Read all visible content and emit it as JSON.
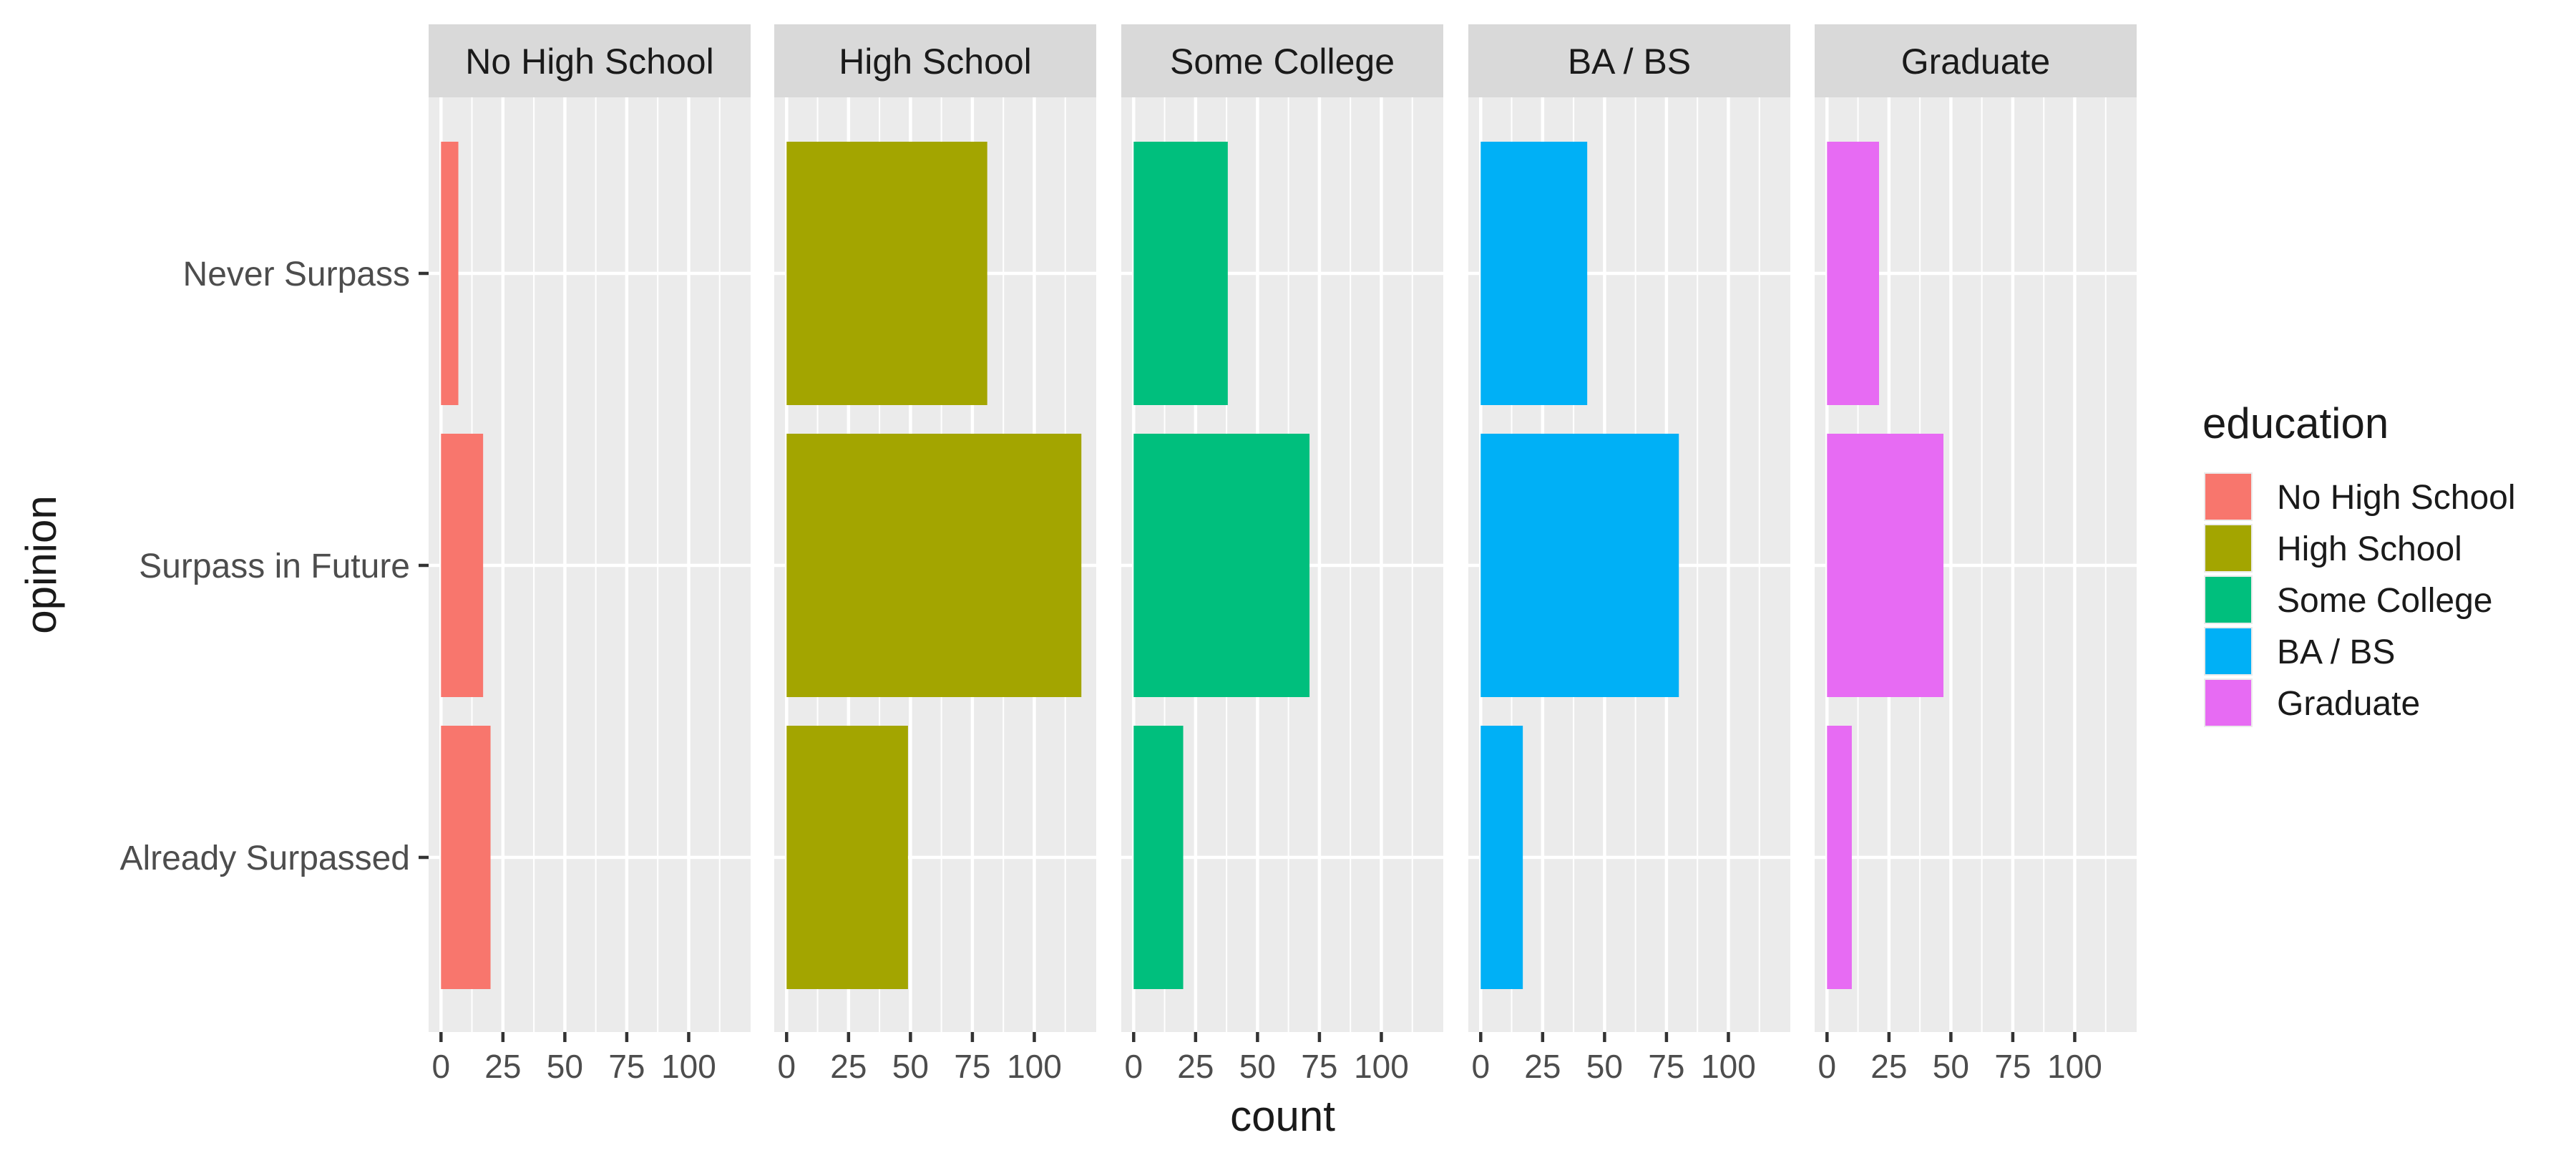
{
  "chart_data": {
    "type": "bar",
    "orientation": "horizontal",
    "facet_by": "education",
    "xlabel": "count",
    "ylabel": "opinion",
    "xlim": [
      -5,
      125
    ],
    "x_ticks": [
      0,
      25,
      50,
      75,
      100
    ],
    "x_tick_labels": [
      "0",
      "25",
      "50",
      "75",
      "100"
    ],
    "categories": [
      "Never Surpass",
      "Surpass in Future",
      "Already Surpassed"
    ],
    "grid": true,
    "legend": {
      "title": "education",
      "placement": "right",
      "entries": [
        "No High School",
        "High School",
        "Some College",
        "BA / BS",
        "Graduate"
      ]
    },
    "colors": {
      "panel_background": "#EBEBEB",
      "strip_background": "#D9D9D9",
      "grid": "#FFFFFF",
      "text": "#4D4D4D",
      "title_text": "#1A1A1A"
    },
    "facets": [
      {
        "label": "No High School",
        "color": "#F8766D",
        "values": [
          7,
          17,
          20
        ]
      },
      {
        "label": "High School",
        "color": "#A3A500",
        "values": [
          81,
          119,
          49
        ]
      },
      {
        "label": "Some College",
        "color": "#00BF7D",
        "values": [
          38,
          71,
          20
        ]
      },
      {
        "label": "BA / BS",
        "color": "#00B0F6",
        "values": [
          43,
          80,
          17
        ]
      },
      {
        "label": "Graduate",
        "color": "#E76BF3",
        "values": [
          21,
          47,
          10
        ]
      }
    ]
  }
}
